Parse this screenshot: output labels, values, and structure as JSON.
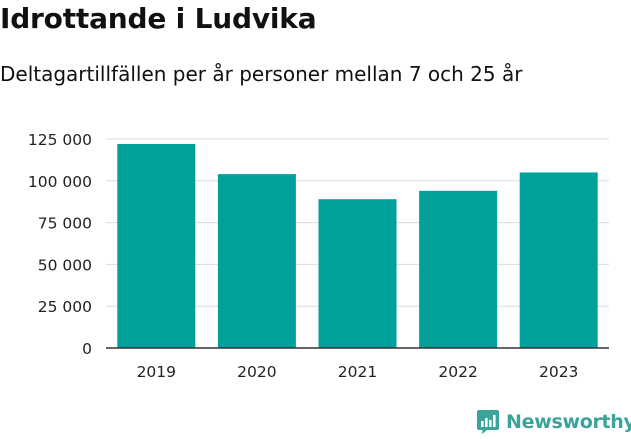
{
  "header": {
    "title": "Idrottande i Ludvika",
    "subtitle": "Deltagartillfällen per år personer mellan 7 och 25 år"
  },
  "brand": {
    "name": "Newsworthy",
    "color": "#3aa39a"
  },
  "chart_data": {
    "type": "bar",
    "categories": [
      "2019",
      "2020",
      "2021",
      "2022",
      "2023"
    ],
    "values": [
      122000,
      104000,
      89000,
      94000,
      105000
    ],
    "ylim": [
      0,
      125000
    ],
    "yticks": [
      0,
      25000,
      50000,
      75000,
      100000,
      125000
    ],
    "ytick_labels": [
      "0",
      "25 000",
      "50 000",
      "75 000",
      "100 000",
      "125 000"
    ],
    "bar_color": "#00a19a",
    "grid": true
  }
}
